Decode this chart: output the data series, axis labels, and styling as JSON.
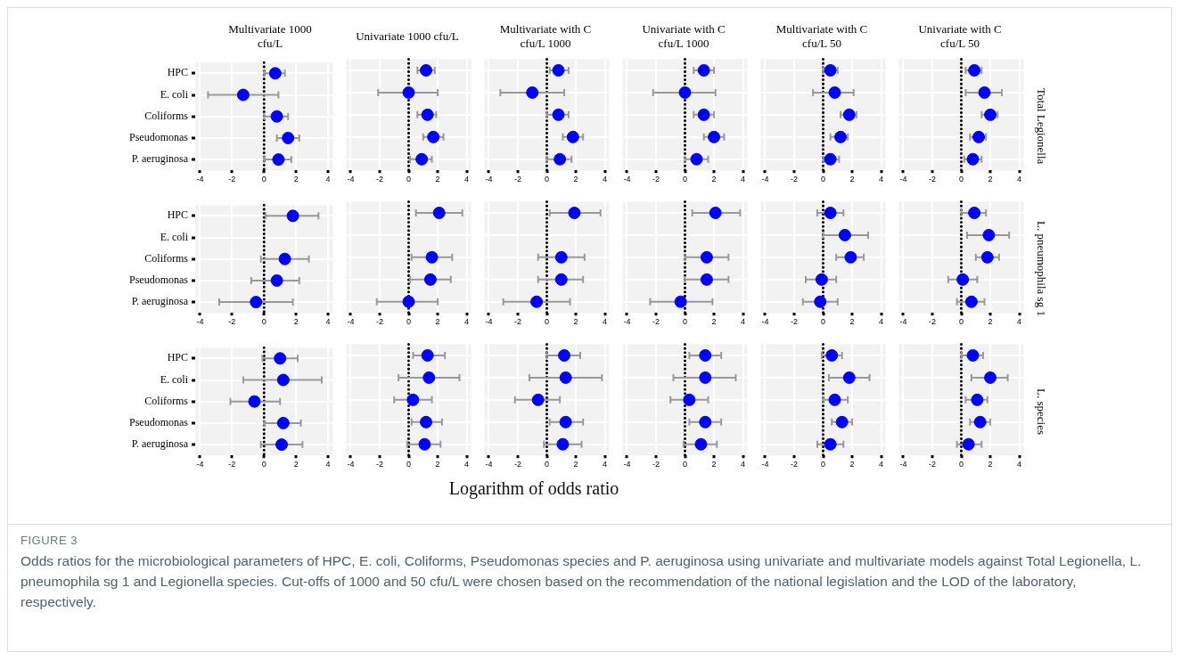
{
  "chart_data": [
    {
      "type": "scatter",
      "orientation": "horizontal",
      "title": "Multivariate 1000 cfu/L",
      "categories": [
        "HPC",
        "E. coli",
        "Coliforms",
        "Pseudomonas",
        "P. aeruginosa"
      ],
      "values": [
        0.7,
        -1.3,
        0.8,
        1.5,
        0.9
      ],
      "errors": [
        [
          0,
          1.3
        ],
        [
          -3.5,
          0.9
        ],
        [
          0,
          1.5
        ],
        [
          0.8,
          2.2
        ],
        [
          0,
          1.7
        ]
      ],
      "color": "#0000ff",
      "marker": "circle",
      "xlim": [
        -4.3,
        4.3
      ],
      "xticks": [
        -4,
        -2,
        0,
        2,
        4
      ],
      "grid": true,
      "ref_lines": [
        {
          "axis": "x",
          "value": 0,
          "color": "#000000",
          "line_style": "dotted"
        }
      ]
    },
    {
      "type": "scatter",
      "orientation": "horizontal",
      "title": "Univariate 1000 cfu/L",
      "values": [
        1.2,
        0,
        1.3,
        1.7,
        0.9
      ],
      "errors": [
        [
          0.6,
          1.8
        ],
        [
          -2.1,
          2.0
        ],
        [
          0.6,
          1.9
        ],
        [
          1.0,
          2.4
        ],
        [
          0.1,
          1.6
        ]
      ],
      "color": "#0000ff",
      "marker": "circle",
      "xlim": [
        -4.3,
        4.3
      ],
      "xticks": [
        -4,
        -2,
        0,
        2,
        4
      ],
      "grid": true,
      "tick_labels": "x",
      "ref_lines": [
        {
          "axis": "x",
          "value": 0,
          "color": "#000000",
          "line_style": "dotted"
        }
      ]
    },
    {
      "type": "scatter",
      "orientation": "horizontal",
      "title": "Multivariate with C cfu/L 1000",
      "values": [
        0.8,
        -1.0,
        0.8,
        1.8,
        0.9
      ],
      "errors": [
        [
          0.2,
          1.5
        ],
        [
          -3.2,
          1.2
        ],
        [
          0,
          1.5
        ],
        [
          1.1,
          2.5
        ],
        [
          0,
          1.7
        ]
      ],
      "color": "#0000ff",
      "marker": "circle",
      "xlim": [
        -4.3,
        4.3
      ],
      "xticks": [
        -4,
        -2,
        0,
        2,
        4
      ],
      "grid": true,
      "tick_labels": "x",
      "ref_lines": [
        {
          "axis": "x",
          "value": 0,
          "color": "#000000",
          "line_style": "dotted"
        }
      ]
    },
    {
      "type": "scatter",
      "orientation": "horizontal",
      "title": "Univariate with C cfu/L 1000",
      "values": [
        1.3,
        0,
        1.3,
        2.0,
        0.8
      ],
      "errors": [
        [
          0.6,
          2.0
        ],
        [
          -2.2,
          2.1
        ],
        [
          0.6,
          2.0
        ],
        [
          1.3,
          2.7
        ],
        [
          0,
          1.6
        ]
      ],
      "color": "#0000ff",
      "marker": "circle",
      "xlim": [
        -4.3,
        4.3
      ],
      "xticks": [
        -4,
        -2,
        0,
        2,
        4
      ],
      "grid": true,
      "tick_labels": "x",
      "ref_lines": [
        {
          "axis": "x",
          "value": 0,
          "color": "#000000",
          "line_style": "dotted"
        }
      ]
    },
    {
      "type": "scatter",
      "orientation": "horizontal",
      "title": "Multivariate with C cfu/L 50",
      "values": [
        0.5,
        0.8,
        1.8,
        1.2,
        0.5
      ],
      "errors": [
        [
          0,
          1.0
        ],
        [
          -0.7,
          2.1
        ],
        [
          1.2,
          2.3
        ],
        [
          0.5,
          1.7
        ],
        [
          0,
          1.1
        ]
      ],
      "color": "#0000ff",
      "marker": "circle",
      "xlim": [
        -4.3,
        4.3
      ],
      "xticks": [
        -4,
        -2,
        0,
        2,
        4
      ],
      "grid": true,
      "tick_labels": "x",
      "ref_lines": [
        {
          "axis": "x",
          "value": 0,
          "color": "#000000",
          "line_style": "dotted"
        }
      ]
    },
    {
      "type": "scatter",
      "orientation": "horizontal",
      "title": "Univariate with C cfu/L 50",
      "y2label": "Total Legionella",
      "values": [
        0.9,
        1.6,
        2.0,
        1.2,
        0.8
      ],
      "errors": [
        [
          0.3,
          1.4
        ],
        [
          0.3,
          2.8
        ],
        [
          1.4,
          2.5
        ],
        [
          0.6,
          1.7
        ],
        [
          0.2,
          1.4
        ]
      ],
      "color": "#0000ff",
      "marker": "circle",
      "xlim": [
        -4.3,
        4.3
      ],
      "xticks": [
        -4,
        -2,
        0,
        2,
        4
      ],
      "grid": true,
      "tick_labels": "x",
      "ref_lines": [
        {
          "axis": "x",
          "value": 0,
          "color": "#000000",
          "line_style": "dotted"
        }
      ]
    },
    {
      "type": "scatter",
      "orientation": "horizontal",
      "categories": [
        "HPC",
        "E. coli",
        "Coliforms",
        "Pseudomonas",
        "P. aeruginosa"
      ],
      "values": [
        1.8,
        null,
        1.3,
        0.8,
        -0.5
      ],
      "errors": [
        [
          0.1,
          3.4
        ],
        null,
        [
          -0.2,
          2.8
        ],
        [
          -0.8,
          2.2
        ],
        [
          -2.8,
          1.8
        ]
      ],
      "color": "#0000ff",
      "marker": "circle",
      "xlim": [
        -4.3,
        4.3
      ],
      "xticks": [
        -4,
        -2,
        0,
        2,
        4
      ],
      "grid": true,
      "ref_lines": [
        {
          "axis": "x",
          "value": 0,
          "color": "#000000",
          "line_style": "dotted"
        }
      ]
    },
    {
      "type": "scatter",
      "orientation": "horizontal",
      "values": [
        2.1,
        null,
        1.6,
        1.5,
        0
      ],
      "errors": [
        [
          0.5,
          3.7
        ],
        null,
        [
          0.2,
          3.0
        ],
        [
          0.1,
          2.9
        ],
        [
          -2.2,
          2.0
        ]
      ],
      "color": "#0000ff",
      "marker": "circle",
      "xlim": [
        -4.3,
        4.3
      ],
      "xticks": [
        -4,
        -2,
        0,
        2,
        4
      ],
      "grid": true,
      "tick_labels": "x",
      "ref_lines": [
        {
          "axis": "x",
          "value": 0,
          "color": "#000000",
          "line_style": "dotted"
        }
      ]
    },
    {
      "type": "scatter",
      "orientation": "horizontal",
      "values": [
        1.9,
        null,
        1.0,
        1.0,
        -0.7
      ],
      "errors": [
        [
          0.2,
          3.7
        ],
        null,
        [
          -0.6,
          2.6
        ],
        [
          -0.6,
          2.5
        ],
        [
          -3.0,
          1.6
        ]
      ],
      "color": "#0000ff",
      "marker": "circle",
      "xlim": [
        -4.3,
        4.3
      ],
      "xticks": [
        -4,
        -2,
        0,
        2,
        4
      ],
      "grid": true,
      "tick_labels": "x",
      "ref_lines": [
        {
          "axis": "x",
          "value": 0,
          "color": "#000000",
          "line_style": "dotted"
        }
      ]
    },
    {
      "type": "scatter",
      "orientation": "horizontal",
      "values": [
        2.1,
        null,
        1.5,
        1.5,
        -0.3
      ],
      "errors": [
        [
          0.5,
          3.8
        ],
        null,
        [
          0,
          3.0
        ],
        [
          0,
          3.0
        ],
        [
          -2.4,
          1.9
        ]
      ],
      "color": "#0000ff",
      "marker": "circle",
      "xlim": [
        -4.3,
        4.3
      ],
      "xticks": [
        -4,
        -2,
        0,
        2,
        4
      ],
      "grid": true,
      "tick_labels": "x",
      "ref_lines": [
        {
          "axis": "x",
          "value": 0,
          "color": "#000000",
          "line_style": "dotted"
        }
      ]
    },
    {
      "type": "scatter",
      "orientation": "horizontal",
      "values": [
        0.5,
        1.5,
        1.9,
        -0.1,
        -0.2
      ],
      "errors": [
        [
          -0.4,
          1.4
        ],
        [
          0,
          3.1
        ],
        [
          0.9,
          2.8
        ],
        [
          -1.2,
          0.9
        ],
        [
          -1.4,
          1.0
        ]
      ],
      "color": "#0000ff",
      "marker": "circle",
      "xlim": [
        -4.3,
        4.3
      ],
      "xticks": [
        -4,
        -2,
        0,
        2,
        4
      ],
      "grid": true,
      "tick_labels": "x",
      "ref_lines": [
        {
          "axis": "x",
          "value": 0,
          "color": "#000000",
          "line_style": "dotted"
        }
      ]
    },
    {
      "type": "scatter",
      "orientation": "horizontal",
      "y2label": "L. pneumophila sg 1",
      "values": [
        0.9,
        1.9,
        1.8,
        0.1,
        0.7
      ],
      "errors": [
        [
          0,
          1.7
        ],
        [
          0.4,
          3.3
        ],
        [
          1.0,
          2.6
        ],
        [
          -0.9,
          1.1
        ],
        [
          -0.3,
          1.6
        ]
      ],
      "color": "#0000ff",
      "marker": "circle",
      "xlim": [
        -4.3,
        4.3
      ],
      "xticks": [
        -4,
        -2,
        0,
        2,
        4
      ],
      "grid": true,
      "tick_labels": "x",
      "ref_lines": [
        {
          "axis": "x",
          "value": 0,
          "color": "#000000",
          "line_style": "dotted"
        }
      ]
    },
    {
      "type": "scatter",
      "orientation": "horizontal",
      "categories": [
        "HPC",
        "E. coli",
        "Coliforms",
        "Pseudomonas",
        "P. aeruginosa"
      ],
      "values": [
        1.0,
        1.2,
        -0.6,
        1.2,
        1.1
      ],
      "errors": [
        [
          -0.1,
          2.1
        ],
        [
          -1.3,
          3.6
        ],
        [
          -2.1,
          1.0
        ],
        [
          0,
          2.3
        ],
        [
          -0.2,
          2.4
        ]
      ],
      "color": "#0000ff",
      "marker": "circle",
      "xlim": [
        -4.3,
        4.3
      ],
      "xticks": [
        -4,
        -2,
        0,
        2,
        4
      ],
      "grid": true,
      "ref_lines": [
        {
          "axis": "x",
          "value": 0,
          "color": "#000000",
          "line_style": "dotted"
        }
      ]
    },
    {
      "type": "scatter",
      "orientation": "horizontal",
      "values": [
        1.3,
        1.4,
        0.3,
        1.2,
        1.1
      ],
      "errors": [
        [
          0.3,
          2.5
        ],
        [
          -0.7,
          3.5
        ],
        [
          -1.0,
          1.6
        ],
        [
          0.2,
          2.3
        ],
        [
          -0.1,
          2.2
        ]
      ],
      "color": "#0000ff",
      "marker": "circle",
      "xlim": [
        -4.3,
        4.3
      ],
      "xticks": [
        -4,
        -2,
        0,
        2,
        4
      ],
      "grid": true,
      "tick_labels": "x",
      "ref_lines": [
        {
          "axis": "x",
          "value": 0,
          "color": "#000000",
          "line_style": "dotted"
        }
      ]
    },
    {
      "type": "scatter",
      "orientation": "horizontal",
      "values": [
        1.2,
        1.3,
        -0.6,
        1.3,
        1.1
      ],
      "errors": [
        [
          0,
          2.3
        ],
        [
          -1.2,
          3.8
        ],
        [
          -2.2,
          0.9
        ],
        [
          0.2,
          2.5
        ],
        [
          -0.2,
          2.4
        ]
      ],
      "color": "#0000ff",
      "marker": "circle",
      "xlim": [
        -4.3,
        4.3
      ],
      "xticks": [
        -4,
        -2,
        0,
        2,
        4
      ],
      "grid": true,
      "tick_labels": "x",
      "ref_lines": [
        {
          "axis": "x",
          "value": 0,
          "color": "#000000",
          "line_style": "dotted"
        }
      ]
    },
    {
      "type": "scatter",
      "orientation": "horizontal",
      "values": [
        1.4,
        1.4,
        0.3,
        1.4,
        1.1
      ],
      "errors": [
        [
          0.3,
          2.5
        ],
        [
          -0.8,
          3.5
        ],
        [
          -1.0,
          1.6
        ],
        [
          0.3,
          2.5
        ],
        [
          -0.1,
          2.2
        ]
      ],
      "color": "#0000ff",
      "marker": "circle",
      "xlim": [
        -4.3,
        4.3
      ],
      "xticks": [
        -4,
        -2,
        0,
        2,
        4
      ],
      "grid": true,
      "tick_labels": "x",
      "ref_lines": [
        {
          "axis": "x",
          "value": 0,
          "color": "#000000",
          "line_style": "dotted"
        }
      ]
    },
    {
      "type": "scatter",
      "orientation": "horizontal",
      "values": [
        0.6,
        1.8,
        0.8,
        1.3,
        0.5
      ],
      "errors": [
        [
          -0.1,
          1.3
        ],
        [
          0.4,
          3.2
        ],
        [
          0,
          1.7
        ],
        [
          0.6,
          2.0
        ],
        [
          -0.4,
          1.4
        ]
      ],
      "color": "#0000ff",
      "marker": "circle",
      "xlim": [
        -4.3,
        4.3
      ],
      "xticks": [
        -4,
        -2,
        0,
        2,
        4
      ],
      "grid": true,
      "tick_labels": "x",
      "ref_lines": [
        {
          "axis": "x",
          "value": 0,
          "color": "#000000",
          "line_style": "dotted"
        }
      ]
    },
    {
      "type": "scatter",
      "orientation": "horizontal",
      "y2label": "L. species",
      "values": [
        0.8,
        2.0,
        1.1,
        1.3,
        0.5
      ],
      "errors": [
        [
          0,
          1.5
        ],
        [
          0.7,
          3.2
        ],
        [
          0.3,
          1.8
        ],
        [
          0.6,
          2.0
        ],
        [
          -0.3,
          1.4
        ]
      ],
      "color": "#0000ff",
      "marker": "circle",
      "xlim": [
        -4.3,
        4.3
      ],
      "xticks": [
        -4,
        -2,
        0,
        2,
        4
      ],
      "grid": true,
      "tick_labels": "x",
      "ref_lines": [
        {
          "axis": "x",
          "value": 0,
          "color": "#000000",
          "line_style": "dotted"
        }
      ]
    },
    {
      "type": "other",
      "xlabel": "Logarithm of odds ratio",
      "title": "FIGURE 3",
      "annotations": [
        "Odds ratios for the microbiological parameters of HPC, E. coli, Coliforms, Pseudomonas species and P. aeruginosa using univariate and multivariate models against Total Legionella, L. pneumophila sg 1 and Legionella species. Cut-offs of 1000 and 50 cfu/L were chosen based on the recommendation of the national legislation and the LOD of the laboratory, respectively."
      ]
    }
  ]
}
